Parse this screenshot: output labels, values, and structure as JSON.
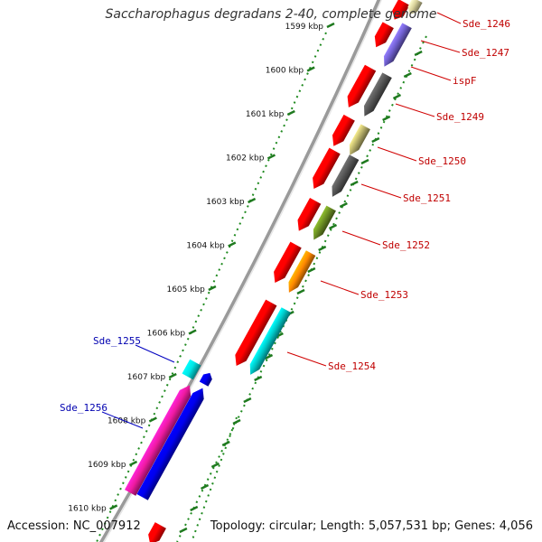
{
  "title": "Saccharophagus degradans 2-40, complete genome",
  "footer": {
    "accession": "Accession: NC_007912",
    "topology": "Topology: circular; Length: 5,057,531 bp; Genes: 4,056"
  },
  "scale": {
    "unit": "kbp",
    "labels": [
      "1599 kbp",
      "1600 kbp",
      "1601 kbp",
      "1602 kbp",
      "1603 kbp",
      "1604 kbp",
      "1605 kbp",
      "1606 kbp",
      "1607 kbp",
      "1608 kbp",
      "1609 kbp",
      "1610 kbp"
    ]
  },
  "gene_labels": [
    {
      "text": "Sde_1246",
      "strand": "forward"
    },
    {
      "text": "Sde_1247",
      "strand": "forward"
    },
    {
      "text": "ispF",
      "strand": "forward"
    },
    {
      "text": "Sde_1249",
      "strand": "forward"
    },
    {
      "text": "Sde_1250",
      "strand": "forward"
    },
    {
      "text": "Sde_1251",
      "strand": "forward"
    },
    {
      "text": "Sde_1252",
      "strand": "forward"
    },
    {
      "text": "Sde_1253",
      "strand": "forward"
    },
    {
      "text": "Sde_1254",
      "strand": "forward"
    },
    {
      "text": "Sde_1255",
      "strand": "reverse"
    },
    {
      "text": "Sde_1256",
      "strand": "reverse"
    }
  ],
  "colors": {
    "forward_label": "#c00000",
    "reverse_label": "#0000b0",
    "cds": "#ff0000",
    "backbone": "#888888",
    "tick": "#1a7a1a"
  }
}
